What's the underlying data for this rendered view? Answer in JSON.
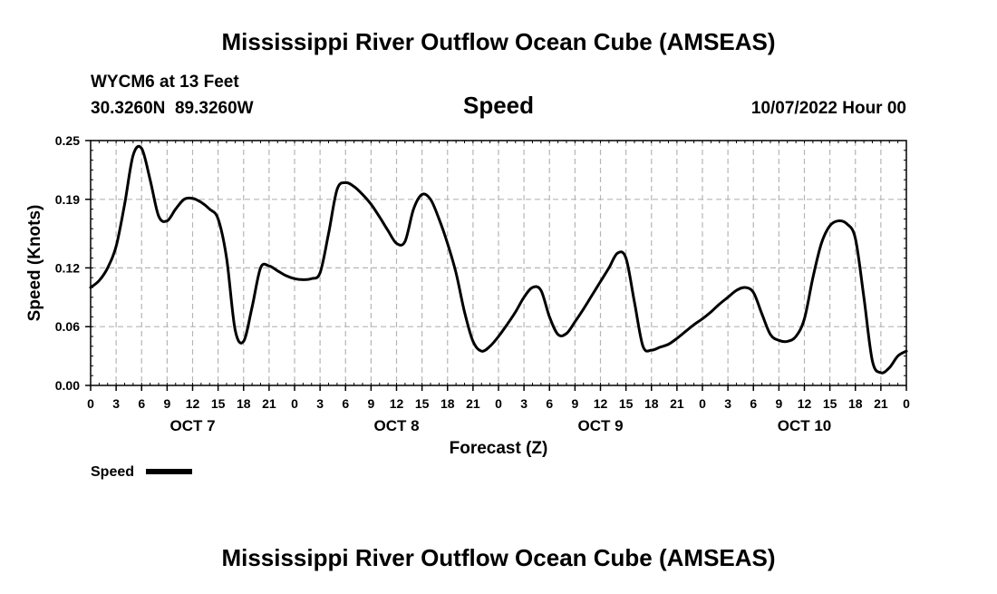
{
  "page": {
    "title": "Mississippi River Outflow Ocean Cube (AMSEAS)",
    "footer_title": "Mississippi River Outflow Ocean Cube (AMSEAS)"
  },
  "header": {
    "station_line": "WYCM6 at 13 Feet",
    "coords_line": "30.3260N  89.3260W",
    "variable": "Speed",
    "datetime": "10/07/2022 Hour 00"
  },
  "chart_data": {
    "type": "line",
    "title": "Speed",
    "xlabel": "Forecast (Z)",
    "ylabel": "Speed (Knots)",
    "xlim": [
      0,
      96
    ],
    "ylim": [
      0,
      0.25
    ],
    "yticks": [
      0.0,
      0.06,
      0.12,
      0.19,
      0.25
    ],
    "ytick_labels": [
      "0.00",
      "0.06",
      "0.12",
      "0.19",
      "0.25"
    ],
    "xtick_hours": [
      0,
      3,
      6,
      9,
      12,
      15,
      18,
      21,
      24,
      27,
      30,
      33,
      36,
      39,
      42,
      45,
      48,
      51,
      54,
      57,
      60,
      63,
      66,
      69,
      72,
      75,
      78,
      81,
      84,
      87,
      90,
      93,
      96
    ],
    "xtick_labels": [
      "0",
      "3",
      "6",
      "9",
      "12",
      "15",
      "18",
      "21",
      "0",
      "3",
      "6",
      "9",
      "12",
      "15",
      "18",
      "21",
      "0",
      "3",
      "6",
      "9",
      "12",
      "15",
      "18",
      "21",
      "0",
      "3",
      "6",
      "9",
      "12",
      "15",
      "18",
      "21",
      "0"
    ],
    "day_labels": [
      {
        "hour": 12,
        "label": "OCT 7"
      },
      {
        "hour": 36,
        "label": "OCT 8"
      },
      {
        "hour": 60,
        "label": "OCT 9"
      },
      {
        "hour": 84,
        "label": "OCT 10"
      }
    ],
    "grid": true,
    "legend_position": "bottom-left",
    "series": [
      {
        "name": "Speed",
        "color": "#000000",
        "x": [
          0,
          1,
          2,
          3,
          4,
          5,
          6,
          7,
          8,
          9,
          10,
          11,
          12,
          13,
          14,
          15,
          16,
          17,
          18,
          19,
          20,
          21,
          22,
          23,
          24,
          25,
          26,
          27,
          28,
          29,
          30,
          31,
          32,
          33,
          34,
          35,
          36,
          37,
          38,
          39,
          40,
          41,
          42,
          43,
          44,
          45,
          46,
          47,
          48,
          49,
          50,
          51,
          52,
          53,
          54,
          55,
          56,
          57,
          58,
          59,
          60,
          61,
          62,
          63,
          64,
          65,
          66,
          67,
          68,
          69,
          70,
          71,
          72,
          73,
          74,
          75,
          76,
          77,
          78,
          79,
          80,
          81,
          82,
          83,
          84,
          85,
          86,
          87,
          88,
          89,
          90,
          91,
          92,
          93,
          94,
          95,
          96
        ],
        "values": [
          0.1,
          0.107,
          0.12,
          0.142,
          0.185,
          0.235,
          0.242,
          0.21,
          0.173,
          0.168,
          0.18,
          0.19,
          0.191,
          0.187,
          0.18,
          0.17,
          0.13,
          0.057,
          0.045,
          0.08,
          0.12,
          0.122,
          0.117,
          0.112,
          0.109,
          0.108,
          0.109,
          0.115,
          0.155,
          0.2,
          0.207,
          0.203,
          0.195,
          0.185,
          0.172,
          0.158,
          0.145,
          0.147,
          0.18,
          0.195,
          0.19,
          0.17,
          0.145,
          0.115,
          0.075,
          0.045,
          0.035,
          0.04,
          0.05,
          0.062,
          0.075,
          0.09,
          0.1,
          0.097,
          0.07,
          0.052,
          0.053,
          0.065,
          0.078,
          0.092,
          0.106,
          0.12,
          0.135,
          0.13,
          0.085,
          0.04,
          0.036,
          0.039,
          0.042,
          0.048,
          0.055,
          0.062,
          0.068,
          0.075,
          0.083,
          0.09,
          0.097,
          0.1,
          0.095,
          0.073,
          0.052,
          0.046,
          0.045,
          0.05,
          0.068,
          0.11,
          0.145,
          0.163,
          0.168,
          0.165,
          0.15,
          0.09,
          0.025,
          0.013,
          0.018,
          0.03,
          0.035
        ]
      }
    ],
    "legend": [
      {
        "label": "Speed",
        "color": "#000000"
      }
    ]
  }
}
